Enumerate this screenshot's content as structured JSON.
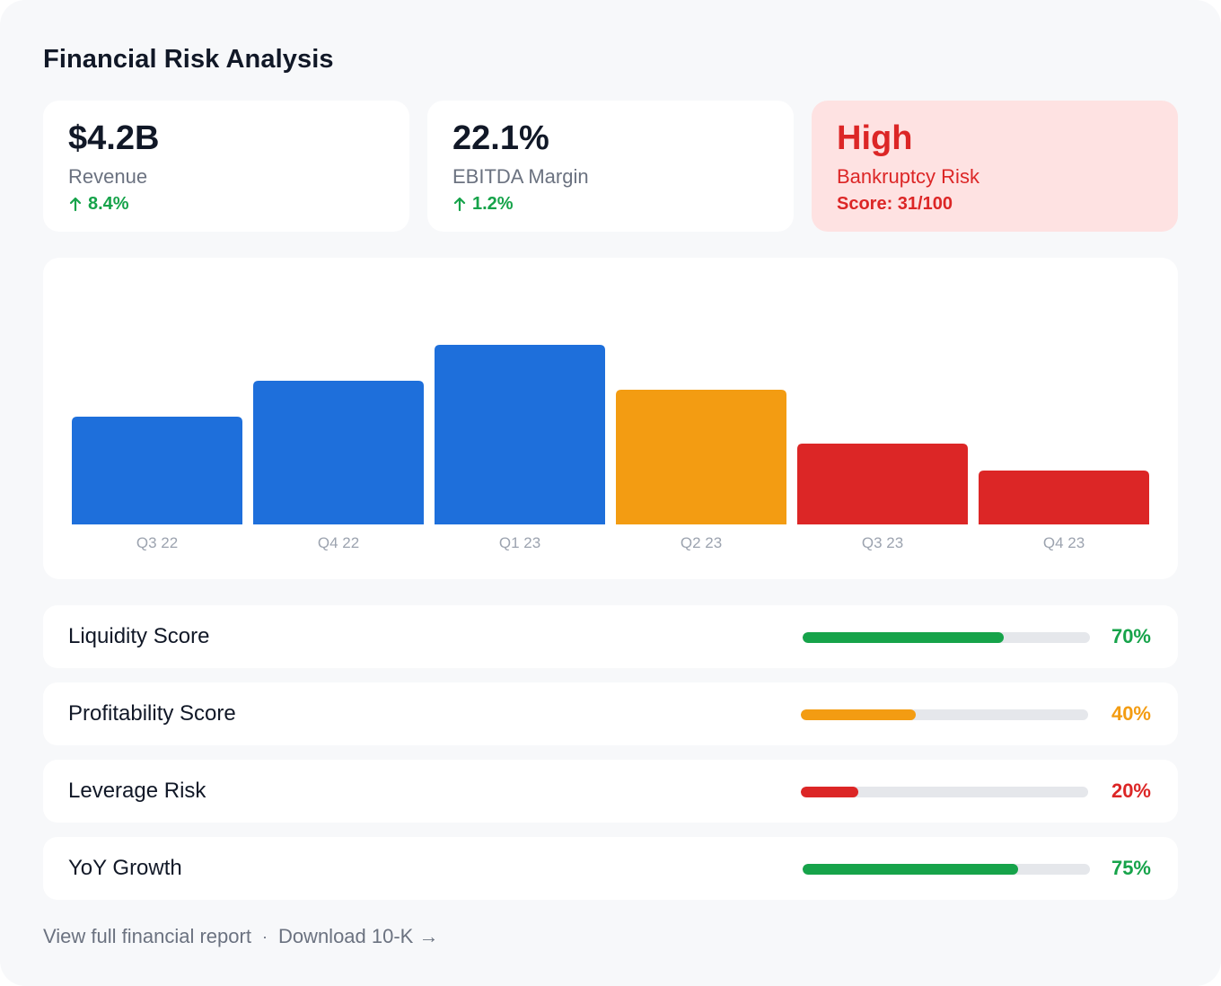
{
  "title": "Financial Risk Analysis",
  "kpis": [
    {
      "value": "$4.2B",
      "label": "Revenue",
      "change": "8.4%"
    },
    {
      "value": "22.1%",
      "label": "EBITDA Margin",
      "change": "1.2%"
    },
    {
      "value": "High",
      "label": "Bankruptcy Risk",
      "change": "Score: 31/100"
    }
  ],
  "colors": {
    "blue": "#1e6fdb",
    "amber": "#f39c12",
    "red": "#dc2626",
    "green": "#16a34a"
  },
  "chart_data": {
    "type": "bar",
    "categories": [
      "Q3 22",
      "Q4 22",
      "Q1 23",
      "Q2 23",
      "Q3 23",
      "Q4 23"
    ],
    "values": [
      60,
      80,
      100,
      75,
      45,
      30
    ],
    "bar_colors": [
      "#1e6fdb",
      "#1e6fdb",
      "#1e6fdb",
      "#f39c12",
      "#dc2626",
      "#dc2626"
    ],
    "title": "",
    "xlabel": "",
    "ylabel": "",
    "ylim": [
      0,
      100
    ],
    "grid": false
  },
  "metrics": [
    {
      "label": "Liquidity Score",
      "value": 0.7,
      "pct": "70%",
      "color": "#16a34a"
    },
    {
      "label": "Profitability Score",
      "value": 0.4,
      "pct": "40%",
      "color": "#f39c12"
    },
    {
      "label": "Leverage Risk",
      "value": 0.2,
      "pct": "20%",
      "color": "#dc2626"
    },
    {
      "label": "YoY Growth",
      "value": 0.75,
      "pct": "75%",
      "color": "#16a34a"
    }
  ],
  "footer": {
    "link1": "View full financial report",
    "separator": "·",
    "link2": "Download 10-K →"
  }
}
